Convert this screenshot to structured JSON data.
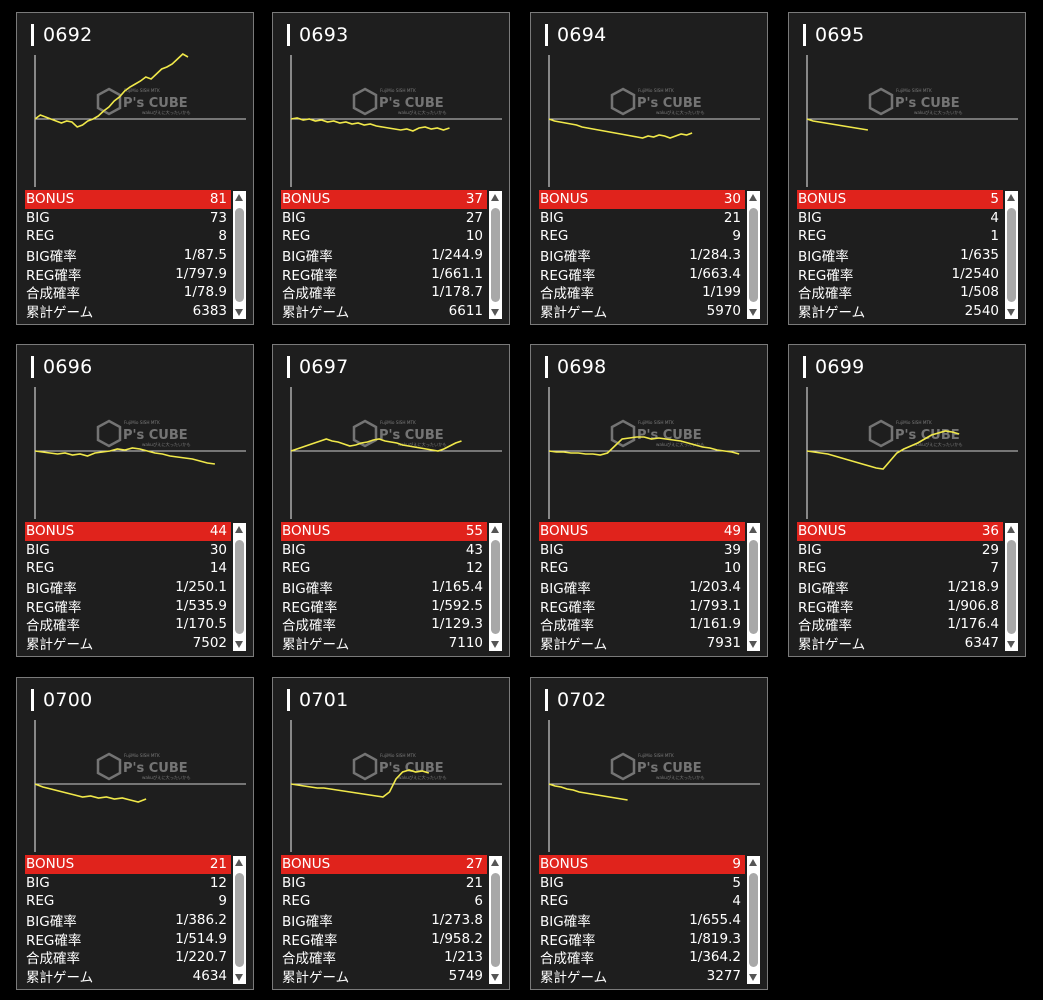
{
  "logo": {
    "top": "FujiMio SISH MTK",
    "main": "P's CUBE",
    "sub": "wakuぴえに大ったいかも"
  },
  "colors": {
    "bonus": "#e0231c",
    "line": "#f0e84a",
    "panel": "#1e1e1e"
  },
  "row_labels": {
    "bonus": "BONUS",
    "big": "BIG",
    "reg": "REG",
    "big_rate": "BIG確率",
    "reg_rate": "REG確率",
    "total_rate": "合成確率",
    "games": "累計ゲーム"
  },
  "machines": [
    {
      "id": "0692",
      "bonus": "81",
      "big": "73",
      "reg": "8",
      "big_rate": "1/87.5",
      "reg_rate": "1/797.9",
      "total_rate": "1/78.9",
      "games": "6383",
      "trend": [
        0,
        4,
        2,
        0,
        -2,
        -4,
        -2,
        -3,
        -8,
        -6,
        -2,
        0,
        3,
        8,
        12,
        18,
        22,
        28,
        32,
        35,
        38,
        42,
        40,
        45,
        50,
        52,
        55,
        60,
        65,
        62
      ]
    },
    {
      "id": "0693",
      "bonus": "37",
      "big": "27",
      "reg": "10",
      "big_rate": "1/244.9",
      "reg_rate": "1/661.1",
      "total_rate": "1/178.7",
      "games": "6611",
      "trend": [
        0,
        1,
        -1,
        0,
        -2,
        -1,
        -3,
        -2,
        -4,
        -3,
        -5,
        -4,
        -6,
        -5,
        -7,
        -8,
        -9,
        -10,
        -11,
        -10,
        -12,
        -9,
        -8,
        -10,
        -9,
        -11,
        -9
      ]
    },
    {
      "id": "0694",
      "bonus": "30",
      "big": "21",
      "reg": "9",
      "big_rate": "1/284.3",
      "reg_rate": "1/663.4",
      "total_rate": "1/199",
      "games": "5970",
      "trend": [
        0,
        -2,
        -3,
        -4,
        -5,
        -6,
        -8,
        -9,
        -10,
        -11,
        -12,
        -13,
        -14,
        -15,
        -16,
        -17,
        -18,
        -19,
        -17,
        -18,
        -16,
        -17,
        -19,
        -17,
        -15,
        -16,
        -14
      ]
    },
    {
      "id": "0695",
      "bonus": "5",
      "big": "4",
      "reg": "1",
      "big_rate": "1/635",
      "reg_rate": "1/2540",
      "total_rate": "1/508",
      "games": "2540",
      "trend": [
        0,
        -2,
        -3,
        -4,
        -5,
        -6,
        -7,
        -8,
        -9,
        -10,
        -11
      ]
    },
    {
      "id": "0696",
      "bonus": "44",
      "big": "30",
      "reg": "14",
      "big_rate": "1/250.1",
      "reg_rate": "1/535.9",
      "total_rate": "1/170.5",
      "games": "7502",
      "trend": [
        0,
        -1,
        -2,
        -3,
        -2,
        -4,
        -3,
        -5,
        -2,
        -1,
        0,
        2,
        1,
        3,
        2,
        0,
        -2,
        -3,
        -5,
        -6,
        -7,
        -8,
        -10,
        -12,
        -13
      ]
    },
    {
      "id": "0697",
      "bonus": "55",
      "big": "43",
      "reg": "12",
      "big_rate": "1/165.4",
      "reg_rate": "1/592.5",
      "total_rate": "1/129.3",
      "games": "7110",
      "trend": [
        0,
        2,
        4,
        6,
        8,
        10,
        12,
        10,
        9,
        7,
        5,
        6,
        8,
        9,
        11,
        12,
        10,
        9,
        8,
        6,
        5,
        4,
        3,
        2,
        1,
        0,
        2,
        5,
        8,
        10
      ]
    },
    {
      "id": "0698",
      "bonus": "49",
      "big": "39",
      "reg": "10",
      "big_rate": "1/203.4",
      "reg_rate": "1/793.1",
      "total_rate": "1/161.9",
      "games": "7931",
      "trend": [
        0,
        -1,
        -1,
        -2,
        -2,
        -3,
        -3,
        -4,
        -2,
        5,
        12,
        13,
        14,
        14,
        12,
        13,
        12,
        11,
        10,
        8,
        6,
        4,
        3,
        1,
        0,
        -1,
        -3
      ]
    },
    {
      "id": "0699",
      "bonus": "36",
      "big": "29",
      "reg": "7",
      "big_rate": "1/218.9",
      "reg_rate": "1/906.8",
      "total_rate": "1/176.4",
      "games": "6347",
      "trend": [
        0,
        -1,
        -2,
        -3,
        -5,
        -7,
        -9,
        -11,
        -13,
        -15,
        -17,
        -18,
        -10,
        -2,
        2,
        5,
        8,
        12,
        16,
        18,
        20,
        19,
        17
      ]
    },
    {
      "id": "0700",
      "bonus": "21",
      "big": "12",
      "reg": "9",
      "big_rate": "1/386.2",
      "reg_rate": "1/514.9",
      "total_rate": "1/220.7",
      "games": "4634",
      "trend": [
        0,
        -3,
        -5,
        -7,
        -9,
        -11,
        -13,
        -12,
        -14,
        -13,
        -15,
        -14,
        -16,
        -18,
        -15
      ]
    },
    {
      "id": "0701",
      "bonus": "27",
      "big": "21",
      "reg": "6",
      "big_rate": "1/273.8",
      "reg_rate": "1/958.2",
      "total_rate": "1/213",
      "games": "5749",
      "trend": [
        0,
        -1,
        -2,
        -3,
        -4,
        -4,
        -5,
        -6,
        -7,
        -8,
        -9,
        -10,
        -11,
        -12,
        -13,
        -8,
        5,
        12,
        14,
        12,
        13,
        11
      ]
    },
    {
      "id": "0702",
      "bonus": "9",
      "big": "5",
      "reg": "4",
      "big_rate": "1/655.4",
      "reg_rate": "1/819.3",
      "total_rate": "1/364.2",
      "games": "3277",
      "trend": [
        0,
        -2,
        -3,
        -5,
        -6,
        -8,
        -9,
        -10,
        -11,
        -12,
        -13,
        -14,
        -15,
        -16
      ]
    }
  ]
}
